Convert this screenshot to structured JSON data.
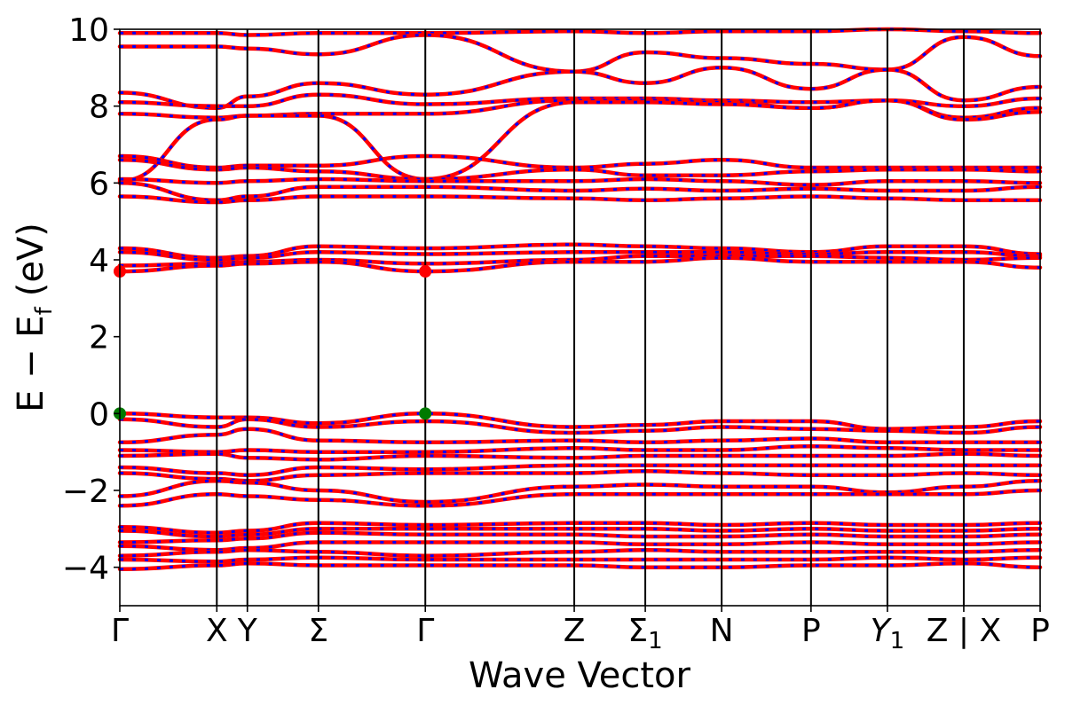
{
  "chart_data": {
    "type": "line",
    "title": "",
    "xlabel": "Wave Vector",
    "ylabel": "E − E",
    "ylabel_sub": "f",
    "ylabel_unit": "(eV)",
    "ylim": [
      -5,
      10
    ],
    "yticks": [
      -4,
      -2,
      0,
      2,
      4,
      6,
      8,
      10
    ],
    "ytick_labels": [
      "−4",
      "−2",
      "0",
      "2",
      "4",
      "6",
      "8",
      "10"
    ],
    "grid": false,
    "legend": "none",
    "colors": {
      "band": "#ff0000",
      "band_dash": "#0000ff",
      "cbm": "#ff0000",
      "vbm": "#007a00",
      "kpath_line": "#000000"
    },
    "kpath": {
      "labels": [
        "Γ",
        "X",
        "Y",
        "Σ",
        "Γ",
        "Z",
        "Σ1",
        "N",
        "P",
        "Y1",
        "Z | X",
        "P"
      ],
      "positions": [
        0.0,
        1.27,
        1.67,
        2.6,
        4.0,
        5.95,
        6.88,
        7.88,
        9.05,
        10.05,
        11.05,
        12.05
      ],
      "xlim": [
        0.0,
        12.05
      ]
    },
    "extrema": [
      {
        "kind": "CBM",
        "x": 0.0,
        "energy": 3.7
      },
      {
        "kind": "CBM",
        "x": 4.0,
        "energy": 3.7
      },
      {
        "kind": "VBM",
        "x": 0.0,
        "energy": 0.0
      },
      {
        "kind": "VBM",
        "x": 4.0,
        "energy": 0.0
      }
    ],
    "series": [
      {
        "k": [
          0.0,
          1.27,
          1.67,
          2.6,
          4.0,
          5.95,
          6.88,
          7.88,
          9.05,
          10.05,
          11.05,
          12.05
        ],
        "energy": [
          9.9,
          9.9,
          9.85,
          9.9,
          9.9,
          9.95,
          9.9,
          9.95,
          9.95,
          10.0,
          9.95,
          9.9
        ]
      },
      {
        "k": [
          0.0,
          1.27,
          1.67,
          2.6,
          4.0,
          5.95,
          6.88,
          7.88,
          9.05,
          10.05,
          11.05,
          12.05
        ],
        "energy": [
          9.55,
          9.55,
          9.5,
          9.35,
          9.85,
          8.9,
          9.4,
          9.25,
          9.1,
          8.95,
          9.8,
          9.3
        ]
      },
      {
        "k": [
          0.0,
          1.27,
          1.67,
          2.6,
          4.0,
          5.95,
          6.88,
          7.88,
          9.05,
          10.05,
          11.05,
          12.05
        ],
        "energy": [
          8.35,
          7.95,
          8.25,
          8.6,
          8.3,
          8.9,
          8.6,
          9.0,
          8.45,
          8.95,
          8.15,
          8.5
        ]
      },
      {
        "k": [
          0.0,
          1.27,
          1.67,
          2.6,
          4.0,
          5.95,
          6.88,
          7.88,
          9.05,
          10.05,
          11.05,
          12.05
        ],
        "energy": [
          8.1,
          8.0,
          8.0,
          8.3,
          8.05,
          8.2,
          8.2,
          8.15,
          8.1,
          8.15,
          8.0,
          8.2
        ]
      },
      {
        "k": [
          0.0,
          1.27,
          1.67,
          2.6,
          4.0,
          5.95,
          6.88,
          7.88,
          9.05,
          10.05,
          11.05,
          12.05
        ],
        "energy": [
          7.8,
          7.7,
          7.75,
          7.8,
          7.8,
          8.15,
          8.15,
          8.1,
          7.95,
          8.15,
          7.7,
          7.95
        ]
      },
      {
        "k": [
          0.0,
          1.27,
          1.67,
          2.6,
          4.0,
          5.95,
          6.88,
          7.88,
          9.05,
          10.05,
          11.05,
          12.05
        ],
        "energy": [
          6.05,
          7.65,
          7.75,
          7.75,
          6.1,
          8.1,
          8.1,
          8.05,
          7.95,
          8.15,
          7.65,
          7.85
        ]
      },
      {
        "k": [
          0.0,
          1.27,
          1.67,
          2.6,
          4.0,
          5.95,
          6.88,
          7.88,
          9.05,
          10.05,
          11.05,
          12.05
        ],
        "energy": [
          6.7,
          6.4,
          6.45,
          6.45,
          6.7,
          6.4,
          6.5,
          6.6,
          6.4,
          6.4,
          6.4,
          6.4
        ]
      },
      {
        "k": [
          0.0,
          1.27,
          1.67,
          2.6,
          4.0,
          5.95,
          6.88,
          7.88,
          9.05,
          10.05,
          11.05,
          12.05
        ],
        "energy": [
          6.6,
          6.35,
          6.4,
          6.3,
          6.1,
          6.35,
          6.2,
          6.2,
          6.3,
          6.35,
          6.35,
          6.3
        ]
      },
      {
        "k": [
          0.0,
          1.27,
          1.67,
          2.6,
          4.0,
          5.95,
          6.88,
          7.88,
          9.05,
          10.05,
          11.05,
          12.05
        ],
        "energy": [
          6.1,
          6.0,
          6.05,
          6.1,
          6.05,
          6.05,
          6.1,
          6.05,
          5.95,
          6.05,
          6.05,
          6.0
        ]
      },
      {
        "k": [
          0.0,
          1.27,
          1.67,
          2.6,
          4.0,
          5.95,
          6.88,
          7.88,
          9.05,
          10.05,
          11.05,
          12.05
        ],
        "energy": [
          6.0,
          5.55,
          5.65,
          5.9,
          5.9,
          5.8,
          5.85,
          5.8,
          5.85,
          5.8,
          5.8,
          5.9
        ]
      },
      {
        "k": [
          0.0,
          1.27,
          1.67,
          2.6,
          4.0,
          5.95,
          6.88,
          7.88,
          9.05,
          10.05,
          11.05,
          12.05
        ],
        "energy": [
          5.65,
          5.5,
          5.55,
          5.65,
          5.65,
          5.6,
          5.55,
          5.6,
          5.65,
          5.6,
          5.55,
          5.55
        ]
      },
      {
        "k": [
          0.0,
          1.27,
          1.67,
          2.6,
          4.0,
          5.95,
          6.88,
          7.88,
          9.05,
          10.05,
          11.05,
          12.05
        ],
        "energy": [
          4.3,
          4.05,
          4.1,
          4.35,
          4.3,
          4.4,
          4.35,
          4.3,
          4.2,
          4.35,
          4.35,
          4.15
        ]
      },
      {
        "k": [
          0.0,
          1.27,
          1.67,
          2.6,
          4.0,
          5.95,
          6.88,
          7.88,
          9.05,
          10.05,
          11.05,
          12.05
        ],
        "energy": [
          4.2,
          4.0,
          4.05,
          4.2,
          4.15,
          4.2,
          4.2,
          4.2,
          4.15,
          4.2,
          4.2,
          4.1
        ]
      },
      {
        "k": [
          0.0,
          1.27,
          1.67,
          2.6,
          4.0,
          5.95,
          6.88,
          7.88,
          9.05,
          10.05,
          11.05,
          12.05
        ],
        "energy": [
          3.85,
          3.9,
          3.95,
          4.0,
          3.9,
          4.0,
          4.1,
          4.1,
          4.1,
          4.05,
          4.0,
          4.05
        ]
      },
      {
        "k": [
          0.0,
          1.27,
          1.67,
          2.6,
          4.0,
          5.95,
          6.88,
          7.88,
          9.05,
          10.05,
          11.05,
          12.05
        ],
        "energy": [
          3.7,
          3.85,
          3.9,
          3.95,
          3.7,
          3.95,
          3.95,
          4.05,
          3.95,
          3.95,
          3.95,
          3.8
        ]
      },
      {
        "k": [
          0.0,
          1.27,
          1.67,
          2.6,
          4.0,
          5.95,
          6.88,
          7.88,
          9.05,
          10.05,
          11.05,
          12.05
        ],
        "energy": [
          0.0,
          -0.1,
          -0.1,
          -0.25,
          0.0,
          -0.35,
          -0.3,
          -0.2,
          -0.2,
          -0.4,
          -0.35,
          -0.2
        ]
      },
      {
        "k": [
          0.0,
          1.27,
          1.67,
          2.6,
          4.0,
          5.95,
          6.88,
          7.88,
          9.05,
          10.05,
          11.05,
          12.05
        ],
        "energy": [
          -0.15,
          -0.35,
          -0.15,
          -0.35,
          -0.2,
          -0.5,
          -0.45,
          -0.35,
          -0.4,
          -0.45,
          -0.5,
          -0.35
        ]
      },
      {
        "k": [
          0.0,
          1.27,
          1.67,
          2.6,
          4.0,
          5.95,
          6.88,
          7.88,
          9.05,
          10.05,
          11.05,
          12.05
        ],
        "energy": [
          -0.75,
          -0.55,
          -0.4,
          -0.7,
          -0.75,
          -0.7,
          -0.75,
          -0.7,
          -0.65,
          -0.75,
          -0.75,
          -0.75
        ]
      },
      {
        "k": [
          0.0,
          1.27,
          1.67,
          2.6,
          4.0,
          5.95,
          6.88,
          7.88,
          9.05,
          10.05,
          11.05,
          12.05
        ],
        "energy": [
          -0.95,
          -1.0,
          -0.95,
          -1.0,
          -1.0,
          -0.9,
          -0.95,
          -0.95,
          -0.85,
          -0.9,
          -0.95,
          -0.95
        ]
      },
      {
        "k": [
          0.0,
          1.27,
          1.67,
          2.6,
          4.0,
          5.95,
          6.88,
          7.88,
          9.05,
          10.05,
          11.05,
          12.05
        ],
        "energy": [
          -1.1,
          -1.05,
          -1.15,
          -1.2,
          -1.1,
          -1.15,
          -1.1,
          -1.1,
          -1.1,
          -1.1,
          -1.05,
          -1.1
        ]
      },
      {
        "k": [
          0.0,
          1.27,
          1.67,
          2.6,
          4.0,
          5.95,
          6.88,
          7.88,
          9.05,
          10.05,
          11.05,
          12.05
        ],
        "energy": [
          -1.4,
          -1.55,
          -1.6,
          -1.4,
          -1.45,
          -1.35,
          -1.35,
          -1.35,
          -1.35,
          -1.35,
          -1.35,
          -1.35
        ]
      },
      {
        "k": [
          0.0,
          1.27,
          1.67,
          2.6,
          4.0,
          5.95,
          6.88,
          7.88,
          9.05,
          10.05,
          11.05,
          12.05
        ],
        "energy": [
          -1.55,
          -1.7,
          -1.75,
          -1.6,
          -1.55,
          -1.55,
          -1.5,
          -1.55,
          -1.6,
          -1.6,
          -1.55,
          -1.6
        ]
      },
      {
        "k": [
          0.0,
          1.27,
          1.67,
          2.6,
          4.0,
          5.95,
          6.88,
          7.88,
          9.05,
          10.05,
          11.05,
          12.05
        ],
        "energy": [
          -2.15,
          -1.75,
          -1.8,
          -2.0,
          -2.3,
          -1.9,
          -1.85,
          -1.9,
          -1.9,
          -2.05,
          -1.9,
          -1.75
        ]
      },
      {
        "k": [
          0.0,
          1.27,
          1.67,
          2.6,
          4.0,
          5.95,
          6.88,
          7.88,
          9.05,
          10.05,
          11.05,
          12.05
        ],
        "energy": [
          -2.4,
          -2.1,
          -2.15,
          -2.25,
          -2.4,
          -2.1,
          -2.1,
          -2.1,
          -2.1,
          -2.1,
          -2.1,
          -2.0
        ]
      },
      {
        "k": [
          0.0,
          1.27,
          1.67,
          2.6,
          4.0,
          5.95,
          6.88,
          7.88,
          9.05,
          10.05,
          11.05,
          12.05
        ],
        "energy": [
          -2.95,
          -3.1,
          -3.05,
          -2.85,
          -2.9,
          -2.85,
          -2.85,
          -2.9,
          -2.85,
          -2.9,
          -2.9,
          -2.85
        ]
      },
      {
        "k": [
          0.0,
          1.27,
          1.67,
          2.6,
          4.0,
          5.95,
          6.88,
          7.88,
          9.05,
          10.05,
          11.05,
          12.05
        ],
        "energy": [
          -3.05,
          -3.2,
          -3.15,
          -3.0,
          -3.0,
          -3.0,
          -3.0,
          -3.05,
          -3.0,
          -3.05,
          -3.05,
          -3.0
        ]
      },
      {
        "k": [
          0.0,
          1.27,
          1.67,
          2.6,
          4.0,
          5.95,
          6.88,
          7.88,
          9.05,
          10.05,
          11.05,
          12.05
        ],
        "energy": [
          -3.35,
          -3.3,
          -3.25,
          -3.1,
          -3.15,
          -3.15,
          -3.2,
          -3.2,
          -3.15,
          -3.2,
          -3.2,
          -3.15
        ]
      },
      {
        "k": [
          0.0,
          1.27,
          1.67,
          2.6,
          4.0,
          5.95,
          6.88,
          7.88,
          9.05,
          10.05,
          11.05,
          12.05
        ],
        "energy": [
          -3.45,
          -3.55,
          -3.5,
          -3.35,
          -3.35,
          -3.35,
          -3.4,
          -3.4,
          -3.35,
          -3.4,
          -3.4,
          -3.35
        ]
      },
      {
        "k": [
          0.0,
          1.27,
          1.67,
          2.6,
          4.0,
          5.95,
          6.88,
          7.88,
          9.05,
          10.05,
          11.05,
          12.05
        ],
        "energy": [
          -3.7,
          -3.6,
          -3.55,
          -3.6,
          -3.7,
          -3.6,
          -3.55,
          -3.6,
          -3.6,
          -3.6,
          -3.6,
          -3.55
        ]
      },
      {
        "k": [
          0.0,
          1.27,
          1.67,
          2.6,
          4.0,
          5.95,
          6.88,
          7.88,
          9.05,
          10.05,
          11.05,
          12.05
        ],
        "energy": [
          -3.8,
          -3.85,
          -3.8,
          -3.75,
          -3.8,
          -3.8,
          -3.8,
          -3.8,
          -3.8,
          -3.75,
          -3.8,
          -3.75
        ]
      },
      {
        "k": [
          0.0,
          1.27,
          1.67,
          2.6,
          4.0,
          5.95,
          6.88,
          7.88,
          9.05,
          10.05,
          11.05,
          12.05
        ],
        "energy": [
          -4.05,
          -3.95,
          -3.9,
          -3.95,
          -3.95,
          -3.95,
          -4.0,
          -4.0,
          -3.95,
          -3.95,
          -3.9,
          -4.0
        ]
      }
    ]
  }
}
